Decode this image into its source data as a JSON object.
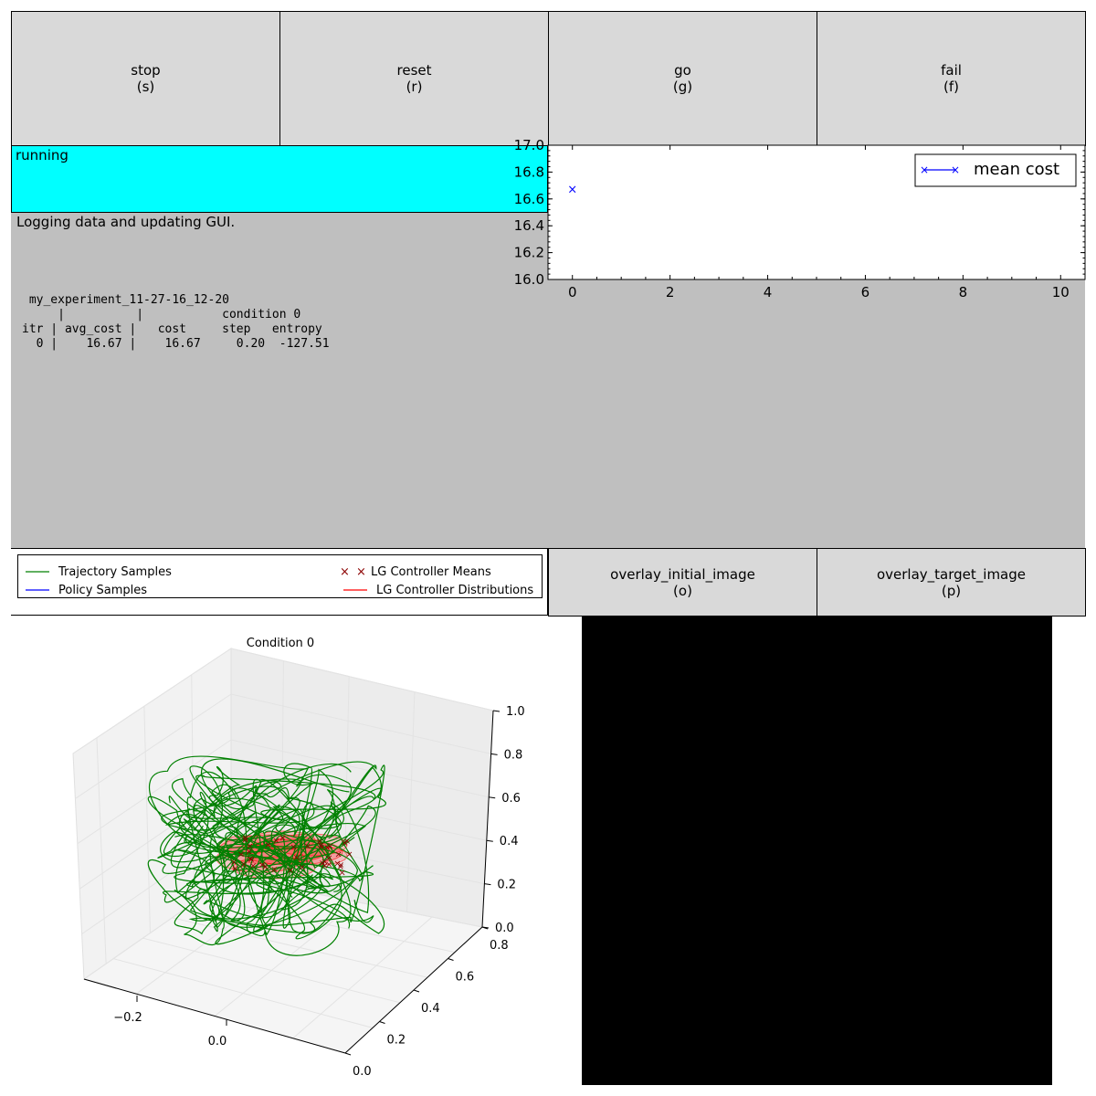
{
  "buttons": {
    "stop": {
      "label": "stop\n(s)"
    },
    "reset": {
      "label": "reset\n(r)"
    },
    "go": {
      "label": "go\n(g)"
    },
    "fail": {
      "label": "fail\n(f)"
    },
    "overlay_initial": {
      "label": "overlay_initial_image\n(o)"
    },
    "overlay_target": {
      "label": "overlay_target_image\n(p)"
    }
  },
  "status": {
    "text": "running",
    "color": "#00ffff"
  },
  "log": {
    "message": "Logging data and updating GUI.",
    "table": " my_experiment_11-27-16_12-20\n     |          |           condition 0\nitr | avg_cost |   cost     step   entropy\n  0 |    16.67 |    16.67     0.20  -127.51"
  },
  "chart_data": [
    {
      "type": "line",
      "legend": "mean cost",
      "legend_position": "top-right",
      "x": [
        0
      ],
      "y": [
        16.67
      ],
      "xlim": [
        -0.5,
        10.5
      ],
      "ylim": [
        16.0,
        17.0
      ],
      "xticks": [
        "0",
        "2",
        "4",
        "6",
        "8",
        "10"
      ],
      "yticks": [
        "16.0",
        "16.2",
        "16.4",
        "16.6",
        "16.8",
        "17.0"
      ],
      "color": "#0000ff"
    }
  ],
  "plot3d": {
    "title": "Condition 0",
    "legend": {
      "trajectory": "Trajectory Samples",
      "policy": "Policy Samples",
      "means": "LG Controller Means",
      "distributions": "LG Controller Distributions"
    },
    "colors": {
      "trajectory": "#008000",
      "policy": "#0000ff",
      "means": "#8b0000",
      "distributions": "#ff0000"
    },
    "x_ticks": [
      "−0.2",
      "0.0"
    ],
    "y_ticks": [
      "0.0",
      "0.2",
      "0.4",
      "0.6",
      "0.8"
    ],
    "z_ticks": [
      "0.0",
      "0.2",
      "0.4",
      "0.6",
      "0.8",
      "1.0"
    ]
  }
}
